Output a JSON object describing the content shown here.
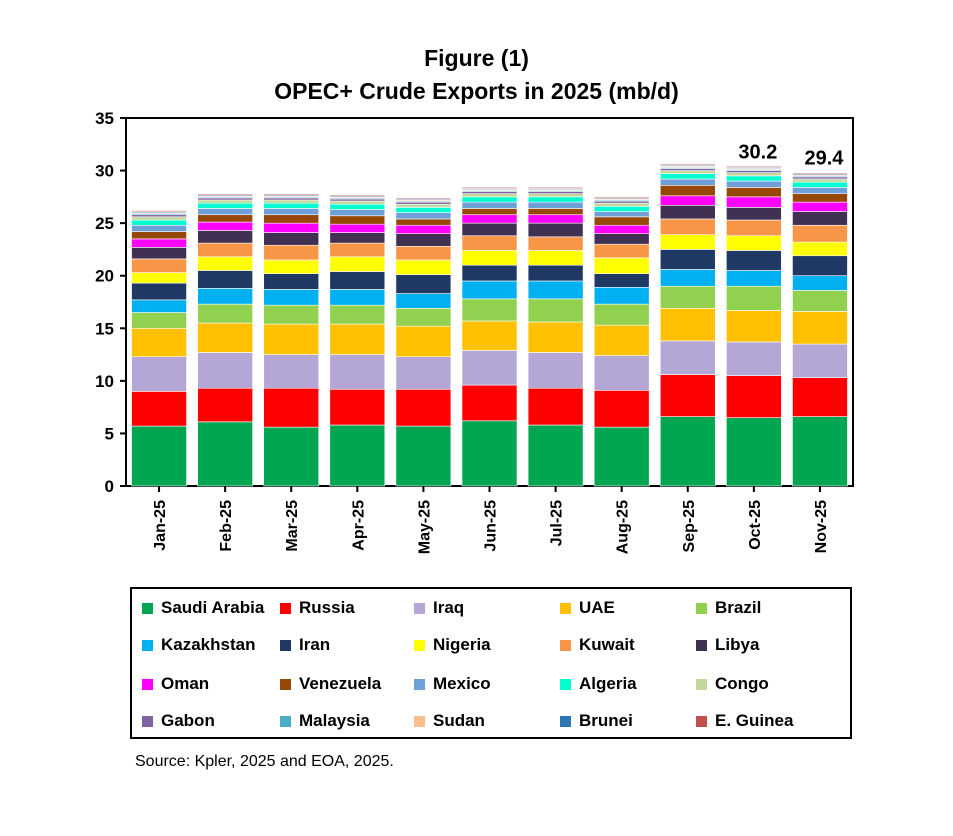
{
  "figure_label": "Figure (1)",
  "source": "Source: Kpler, 2025 and EOA, 2025.",
  "chart_data": {
    "type": "bar",
    "stacked": true,
    "title": "OPEC+ Crude Exports in 2025 (mb/d)",
    "xlabel": "",
    "ylabel": "",
    "ylim": [
      0,
      35
    ],
    "yticks": [
      0,
      5,
      10,
      15,
      20,
      25,
      30,
      35
    ],
    "grid": false,
    "legend_position": "bottom",
    "categories": [
      "Jan-25",
      "Feb-25",
      "Mar-25",
      "Apr-25",
      "May-25",
      "Jun-25",
      "Jul-25",
      "Aug-25",
      "Sep-25",
      "Oct-25",
      "Nov-25"
    ],
    "annotations": [
      {
        "category": "Oct-25",
        "text": "30.2"
      },
      {
        "category": "Nov-25",
        "text": "29.4"
      }
    ],
    "series": [
      {
        "name": "Saudi Arabia",
        "color": "#00a651",
        "values": [
          5.7,
          6.1,
          5.6,
          5.8,
          5.7,
          6.2,
          5.8,
          5.6,
          6.6,
          6.5,
          6.6
        ]
      },
      {
        "name": "Russia",
        "color": "#ff0000",
        "values": [
          3.3,
          3.2,
          3.7,
          3.4,
          3.5,
          3.4,
          3.5,
          3.5,
          4.0,
          4.0,
          3.7
        ]
      },
      {
        "name": "Iraq",
        "color": "#b4a7d6",
        "values": [
          3.3,
          3.4,
          3.2,
          3.3,
          3.1,
          3.3,
          3.4,
          3.3,
          3.2,
          3.2,
          3.2
        ]
      },
      {
        "name": "UAE",
        "color": "#ffc000",
        "values": [
          2.7,
          2.8,
          2.9,
          2.9,
          2.9,
          2.8,
          2.9,
          2.9,
          3.1,
          3.0,
          3.1
        ]
      },
      {
        "name": "Brazil",
        "color": "#92d050",
        "values": [
          1.5,
          1.8,
          1.8,
          1.8,
          1.7,
          2.1,
          2.2,
          2.0,
          2.1,
          2.3,
          2.0
        ]
      },
      {
        "name": "Kazakhstan",
        "color": "#00b0f0",
        "values": [
          1.2,
          1.5,
          1.5,
          1.5,
          1.4,
          1.7,
          1.7,
          1.6,
          1.6,
          1.5,
          1.4
        ]
      },
      {
        "name": "Iran",
        "color": "#1f3864",
        "values": [
          1.6,
          1.7,
          1.5,
          1.7,
          1.8,
          1.5,
          1.5,
          1.3,
          1.9,
          1.9,
          1.9
        ]
      },
      {
        "name": "Nigeria",
        "color": "#ffff00",
        "values": [
          1.0,
          1.3,
          1.3,
          1.4,
          1.4,
          1.4,
          1.4,
          1.5,
          1.4,
          1.4,
          1.3
        ]
      },
      {
        "name": "Kuwait",
        "color": "#f79646",
        "values": [
          1.3,
          1.3,
          1.4,
          1.3,
          1.3,
          1.4,
          1.3,
          1.3,
          1.5,
          1.5,
          1.6
        ]
      },
      {
        "name": "Libya",
        "color": "#403152",
        "values": [
          1.1,
          1.2,
          1.2,
          1.0,
          1.2,
          1.2,
          1.3,
          1.0,
          1.3,
          1.2,
          1.3
        ]
      },
      {
        "name": "Oman",
        "color": "#ff00ff",
        "values": [
          0.8,
          0.8,
          0.9,
          0.8,
          0.8,
          0.8,
          0.8,
          0.8,
          0.9,
          1.0,
          0.9
        ]
      },
      {
        "name": "Venezuela",
        "color": "#974706",
        "values": [
          0.7,
          0.7,
          0.8,
          0.8,
          0.6,
          0.6,
          0.6,
          0.8,
          1.0,
          0.9,
          0.8
        ]
      },
      {
        "name": "Mexico",
        "color": "#6f9fd8",
        "values": [
          0.6,
          0.6,
          0.6,
          0.6,
          0.6,
          0.6,
          0.6,
          0.5,
          0.6,
          0.6,
          0.6
        ]
      },
      {
        "name": "Algeria",
        "color": "#00ffd0",
        "values": [
          0.5,
          0.5,
          0.5,
          0.5,
          0.5,
          0.5,
          0.5,
          0.5,
          0.5,
          0.5,
          0.5
        ]
      },
      {
        "name": "Congo",
        "color": "#c3d69b",
        "values": [
          0.3,
          0.3,
          0.3,
          0.3,
          0.3,
          0.3,
          0.3,
          0.3,
          0.3,
          0.3,
          0.3
        ]
      },
      {
        "name": "Gabon",
        "color": "#8064a2",
        "values": [
          0.2,
          0.2,
          0.2,
          0.2,
          0.2,
          0.2,
          0.2,
          0.2,
          0.2,
          0.2,
          0.2
        ]
      },
      {
        "name": "Malaysia",
        "color": "#4bacc6",
        "values": [
          0.1,
          0.1,
          0.1,
          0.1,
          0.1,
          0.1,
          0.1,
          0.1,
          0.1,
          0.1,
          0.1
        ]
      },
      {
        "name": "Sudan",
        "color": "#fabf8f",
        "values": [
          0.1,
          0.1,
          0.1,
          0.1,
          0.1,
          0.1,
          0.1,
          0.1,
          0.1,
          0.1,
          0.1
        ]
      },
      {
        "name": "Brunei",
        "color": "#2e75b6",
        "values": [
          0.1,
          0.1,
          0.1,
          0.1,
          0.1,
          0.1,
          0.1,
          0.1,
          0.1,
          0.1,
          0.1
        ]
      },
      {
        "name": "E. Guinea",
        "color": "#c0504d",
        "values": [
          0.1,
          0.1,
          0.1,
          0.1,
          0.1,
          0.1,
          0.1,
          0.1,
          0.1,
          0.1,
          0.1
        ]
      }
    ]
  }
}
